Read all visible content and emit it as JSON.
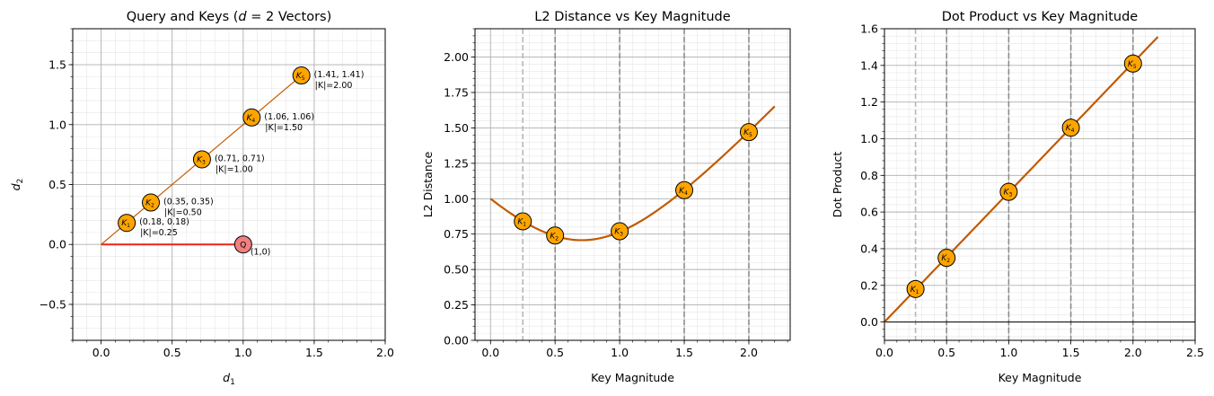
{
  "chart_data": [
    {
      "type": "scatter",
      "title": "Query and Keys ($d = 2$ Vectors)",
      "xlabel": "$d_1$",
      "ylabel": "$d_2$",
      "xlim": [
        -0.2,
        2.0
      ],
      "ylim": [
        -0.8,
        1.8
      ],
      "xticks": [
        0.0,
        0.5,
        1.0,
        1.5,
        2.0
      ],
      "xtick_labels": [
        "0.0",
        "0.5",
        "1.0",
        "1.5",
        "2.0"
      ],
      "yticks": [
        -0.5,
        0.0,
        0.5,
        1.0,
        1.5
      ],
      "ytick_labels": [
        "−0.5",
        "0.0",
        "0.5",
        "1.0",
        "1.5"
      ],
      "grid": true,
      "query": {
        "label": "Q",
        "x": 1.0,
        "y": 0.0,
        "annotation": "(1,0)",
        "color": "#f08080",
        "line_color": "#e8231a"
      },
      "key_line_color": "#c25a00",
      "keys": [
        {
          "label": "K1",
          "x": 0.18,
          "y": 0.18,
          "coord": "(0.18, 0.18)",
          "mag": "|K|=0.25"
        },
        {
          "label": "K2",
          "x": 0.35,
          "y": 0.35,
          "coord": "(0.35, 0.35)",
          "mag": "|K|=0.50"
        },
        {
          "label": "K3",
          "x": 0.71,
          "y": 0.71,
          "coord": "(0.71, 0.71)",
          "mag": "|K|=1.00"
        },
        {
          "label": "K4",
          "x": 1.06,
          "y": 1.06,
          "coord": "(1.06, 1.06)",
          "mag": "|K|=1.50"
        },
        {
          "label": "K5",
          "x": 1.41,
          "y": 1.41,
          "coord": "(1.41, 1.41)",
          "mag": "|K|=2.00"
        }
      ],
      "marker_color": "#ffa500"
    },
    {
      "type": "line",
      "title": "L2 Distance vs Key Magnitude",
      "xlabel": "Key Magnitude",
      "ylabel": "L2 Distance",
      "xlim": [
        -0.12,
        2.32
      ],
      "ylim": [
        0.0,
        2.2
      ],
      "xticks": [
        0.0,
        0.5,
        1.0,
        1.5,
        2.0
      ],
      "xtick_labels": [
        "0.0",
        "0.5",
        "1.0",
        "1.5",
        "2.0"
      ],
      "yticks": [
        0.0,
        0.25,
        0.5,
        0.75,
        1.0,
        1.25,
        1.5,
        1.75,
        2.0
      ],
      "ytick_labels": [
        "0.00",
        "0.25",
        "0.50",
        "0.75",
        "1.00",
        "1.25",
        "1.50",
        "1.75",
        "2.00"
      ],
      "grid": true,
      "curve": {
        "x_start": 0.0,
        "x_end": 2.2,
        "formula": "sqrt(1 + m^2 - sqrt(2) m)",
        "color": "#c25a00"
      },
      "vlines": [
        0.25,
        0.5,
        1.0,
        1.5,
        2.0
      ],
      "points": [
        {
          "label": "K1",
          "x": 0.25,
          "y": 0.84
        },
        {
          "label": "K2",
          "x": 0.5,
          "y": 0.74
        },
        {
          "label": "K3",
          "x": 1.0,
          "y": 0.77
        },
        {
          "label": "K4",
          "x": 1.5,
          "y": 1.06
        },
        {
          "label": "K5",
          "x": 2.0,
          "y": 1.47
        }
      ],
      "marker_color": "#ffa500"
    },
    {
      "type": "line",
      "title": "Dot Product vs Key Magnitude",
      "xlabel": "Key Magnitude",
      "ylabel": "Dot Product",
      "xlim": [
        0.0,
        2.5
      ],
      "ylim": [
        -0.1,
        1.6
      ],
      "xticks": [
        0.0,
        0.5,
        1.0,
        1.5,
        2.0,
        2.5
      ],
      "xtick_labels": [
        "0.0",
        "0.5",
        "1.0",
        "1.5",
        "2.0",
        "2.5"
      ],
      "yticks": [
        0.0,
        0.2,
        0.4,
        0.6,
        0.8,
        1.0,
        1.2,
        1.4,
        1.6
      ],
      "ytick_labels": [
        "0.0",
        "0.2",
        "0.4",
        "0.6",
        "0.8",
        "1.0",
        "1.2",
        "1.4",
        "1.6"
      ],
      "grid": true,
      "curve": {
        "x_start": 0.0,
        "x_end": 2.2,
        "formula": "m / sqrt(2)",
        "color": "#c25a00"
      },
      "vlines": [
        0.25,
        0.5,
        1.0,
        1.5,
        2.0
      ],
      "hline": 0.0,
      "points": [
        {
          "label": "K1",
          "x": 0.25,
          "y": 0.18
        },
        {
          "label": "K2",
          "x": 0.5,
          "y": 0.35
        },
        {
          "label": "K3",
          "x": 1.0,
          "y": 0.71
        },
        {
          "label": "K4",
          "x": 1.5,
          "y": 1.06
        },
        {
          "label": "K5",
          "x": 2.0,
          "y": 1.41
        }
      ],
      "marker_color": "#ffa500"
    }
  ]
}
